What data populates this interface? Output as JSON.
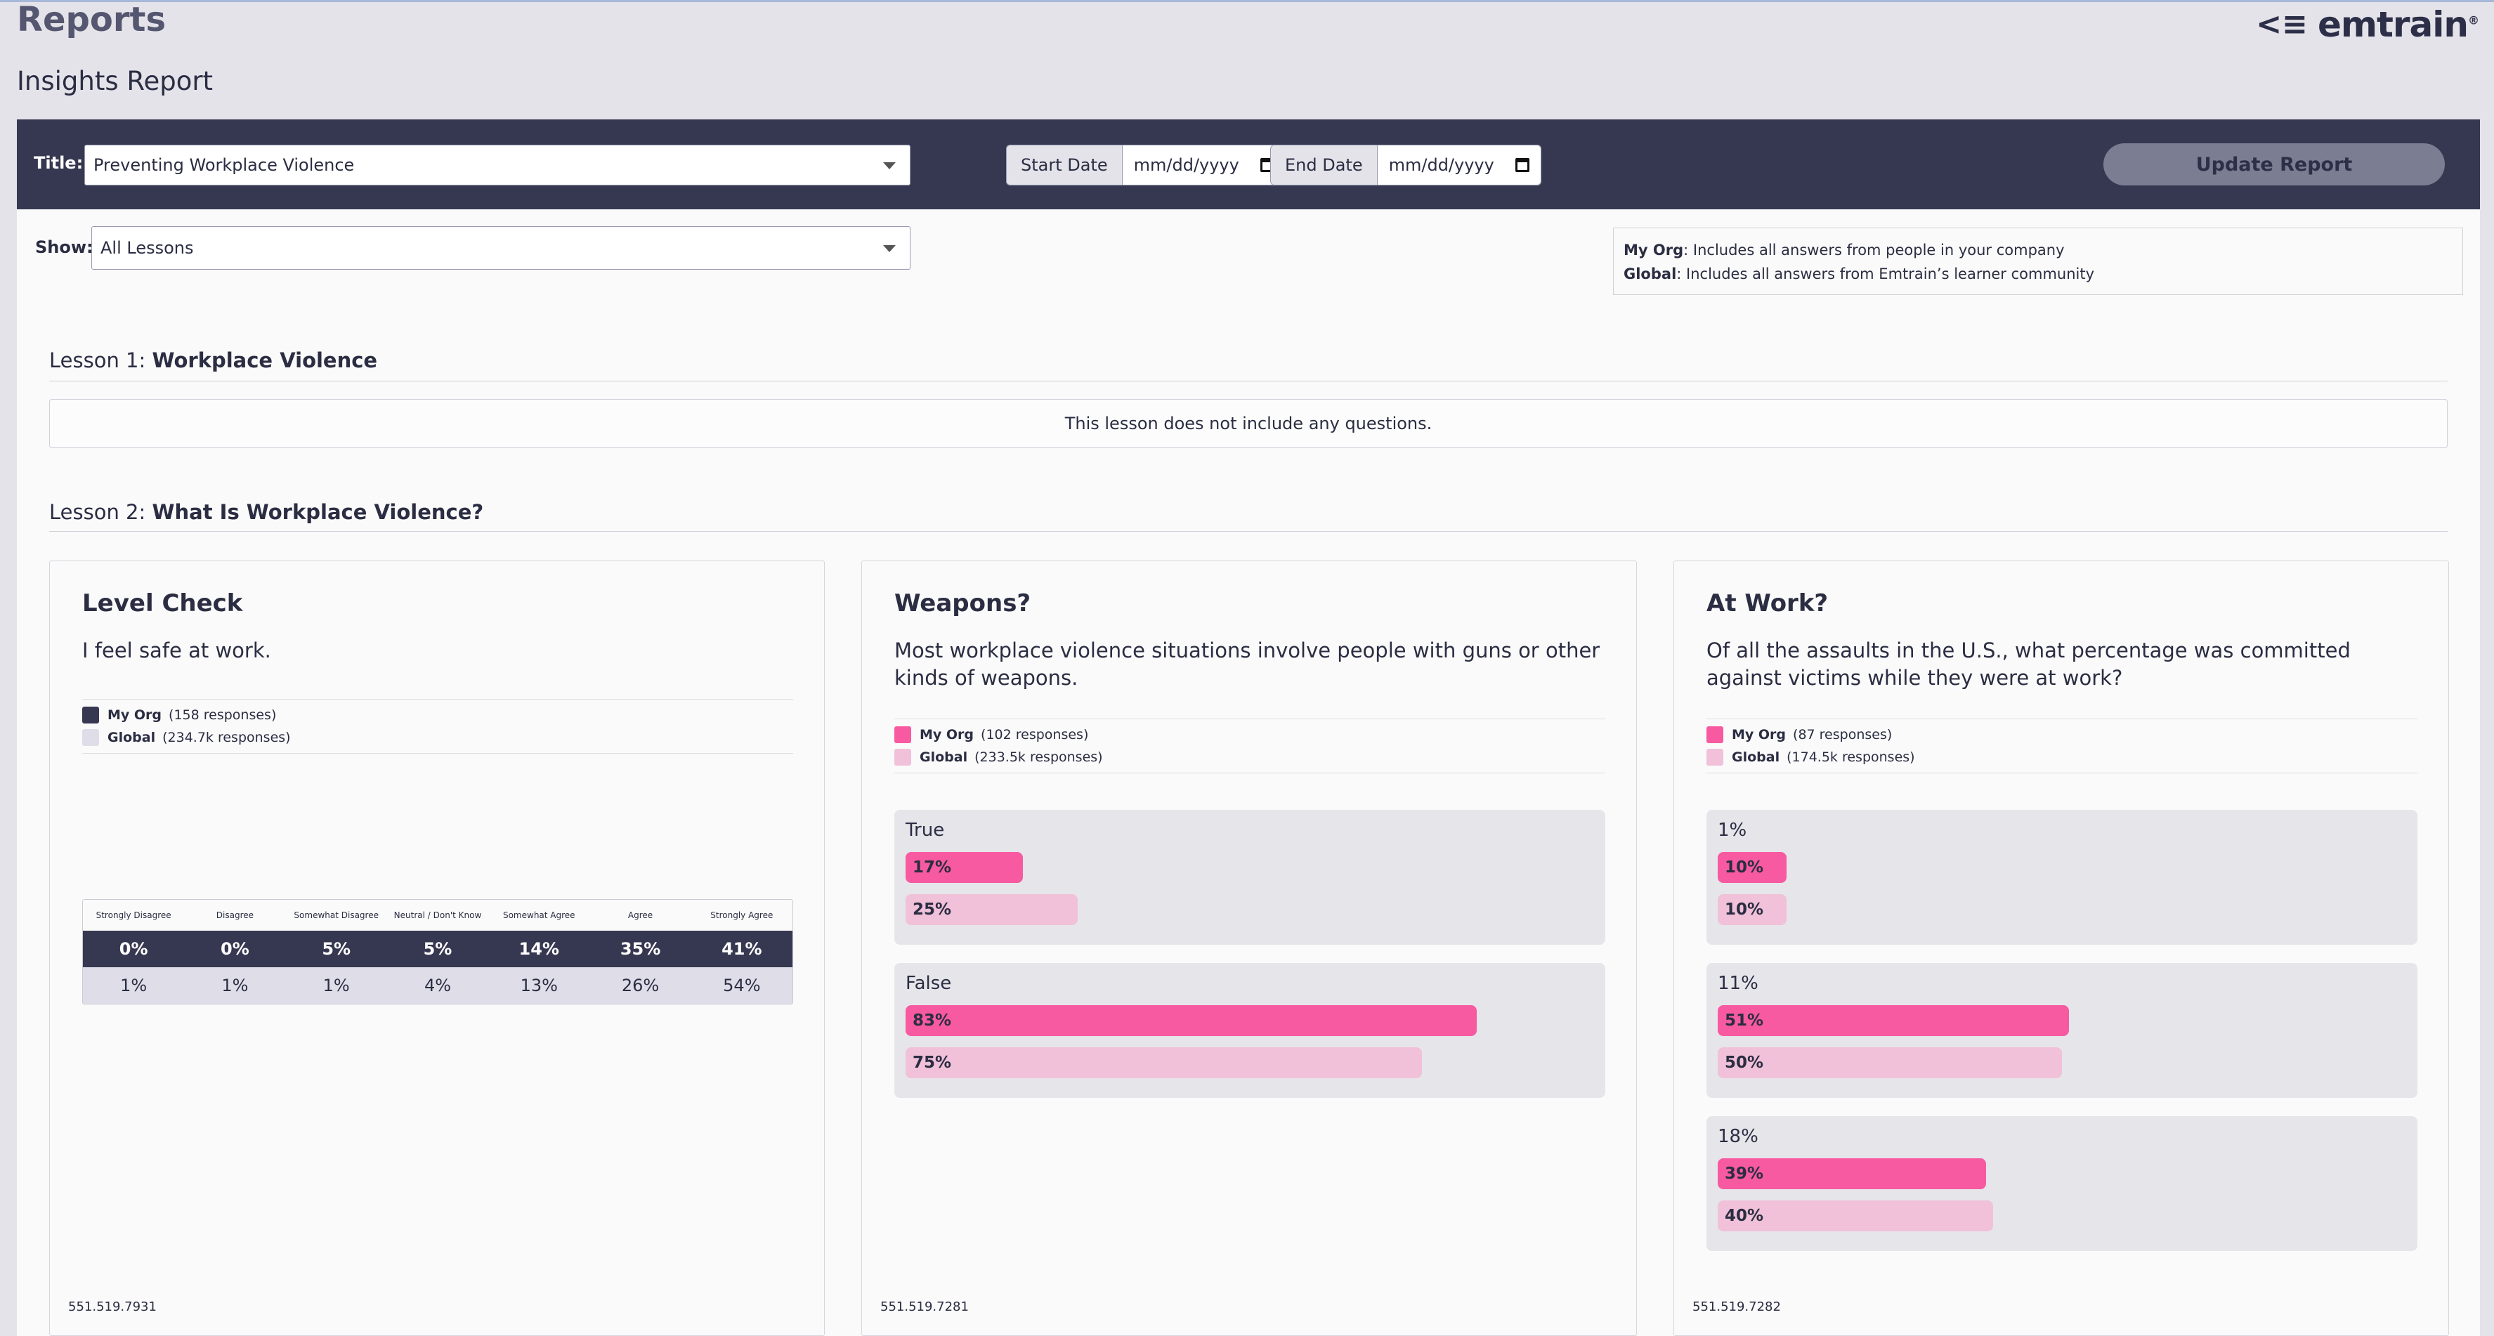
{
  "header": {
    "page_title": "Reports",
    "subtitle": "Insights Report",
    "brand": "emtrain",
    "brand_mark": "®",
    "menu_glyph": "<≡"
  },
  "toolbar": {
    "title_label": "Title:",
    "title_value": "Preventing Workplace Violence",
    "start_label": "Start Date",
    "start_placeholder": "mm/dd/yyyy",
    "end_label": "End Date",
    "end_placeholder": "mm/dd/yyyy",
    "update_label": "Update Report"
  },
  "filter": {
    "show_label": "Show:",
    "show_value": "All Lessons"
  },
  "legend_info": {
    "org_term": "My Org",
    "org_desc": ": Includes all answers from people in your company",
    "global_term": "Global",
    "global_desc": ": Includes all answers from Emtrain’s learner community"
  },
  "lessons": [
    {
      "prefix": "Lesson 1: ",
      "name": "Workplace Violence",
      "empty_note": "This lesson does not include any questions."
    },
    {
      "prefix": "Lesson 2: ",
      "name": "What Is Workplace Violence?"
    }
  ],
  "cards": [
    {
      "title": "Level Check",
      "question": "I feel safe at work.",
      "org_label": "My Org",
      "org_count": "(158 responses)",
      "global_label": "Global",
      "global_count": "(234.7k responses)",
      "columns": [
        "Strongly Disagree",
        "Disagree",
        "Somewhat Disagree",
        "Neutral / Don't Know",
        "Somewhat Agree",
        "Agree",
        "Strongly Agree"
      ],
      "org_values": [
        "0%",
        "0%",
        "5%",
        "5%",
        "14%",
        "35%",
        "41%"
      ],
      "global_values": [
        "1%",
        "1%",
        "1%",
        "4%",
        "13%",
        "26%",
        "54%"
      ],
      "id": "551.519.7931",
      "colors": {
        "org": "#363851",
        "global": "#dedde8"
      }
    },
    {
      "title": "Weapons?",
      "question": "Most workplace violence situations involve people with guns or other kinds of weapons.",
      "org_label": "My Org",
      "org_count": "(102 responses)",
      "global_label": "Global",
      "global_count": "(233.5k responses)",
      "answers": [
        {
          "label": "True",
          "org": "17%",
          "global": "25%",
          "org_value": 17,
          "global_value": 25
        },
        {
          "label": "False",
          "org": "83%",
          "global": "75%",
          "org_value": 83,
          "global_value": 75
        }
      ],
      "id": "551.519.7281",
      "colors": {
        "org": "#f75aa0",
        "global": "#f0c1d9"
      }
    },
    {
      "title": "At Work?",
      "question": "Of all the assaults in the U.S., what percentage was committed against victims while they were at work?",
      "org_label": "My Org",
      "org_count": "(87 responses)",
      "global_label": "Global",
      "global_count": "(174.5k responses)",
      "answers": [
        {
          "label": "1%",
          "org": "10%",
          "global": "10%",
          "org_value": 10,
          "global_value": 10
        },
        {
          "label": "11%",
          "org": "51%",
          "global": "50%",
          "org_value": 51,
          "global_value": 50
        },
        {
          "label": "18%",
          "org": "39%",
          "global": "40%",
          "org_value": 39,
          "global_value": 40
        }
      ],
      "id": "551.519.7282",
      "colors": {
        "org": "#f75aa0",
        "global": "#f0c1d9"
      }
    }
  ]
}
